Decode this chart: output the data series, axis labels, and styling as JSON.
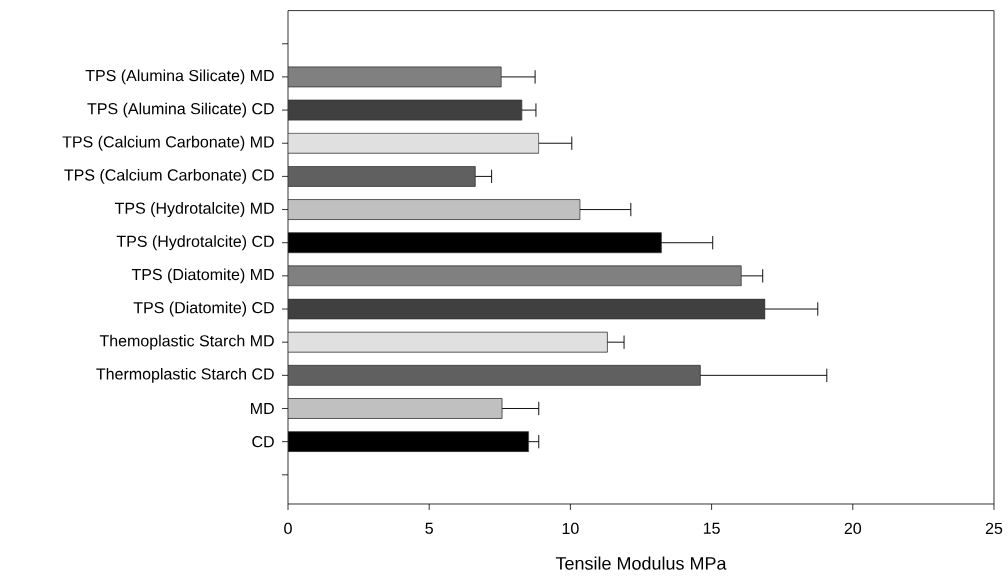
{
  "chart_data": {
    "type": "bar",
    "orientation": "horizontal",
    "xlabel": "Tensile Modulus MPa",
    "categories": [
      null,
      "TPS (Alumina Silicate) MD",
      "TPS (Alumina Silicate) CD",
      "TPS (Calcium Carbonate) MD",
      "TPS (Calcium Carbonate) CD",
      "TPS (Hydrotalcite) MD",
      "TPS (Hydrotalcite) CD",
      "TPS (Diatomite) MD",
      "TPS (Diatomite) CD",
      "Themoplastic Starch MD",
      "Thermoplastic Starch CD",
      "MD",
      "CD",
      null
    ],
    "values": [
      null,
      7.55,
      8.28,
      8.88,
      6.63,
      10.34,
      13.22,
      16.05,
      16.89,
      11.31,
      14.6,
      7.58,
      8.52,
      null
    ],
    "errors": [
      null,
      1.2,
      0.5,
      1.17,
      0.58,
      1.8,
      1.82,
      0.76,
      1.87,
      0.59,
      4.48,
      1.3,
      0.36,
      null
    ],
    "colors": [
      null,
      "#808080",
      "#404040",
      "#e0e0e0",
      "#606060",
      "#c0c0c0",
      "#000000",
      "#808080",
      "#404040",
      "#e0e0e0",
      "#606060",
      "#c0c0c0",
      "#000000",
      null
    ],
    "xlim": [
      0,
      25
    ],
    "xticks": [
      0,
      5,
      10,
      15,
      20,
      25
    ],
    "grid": false
  }
}
